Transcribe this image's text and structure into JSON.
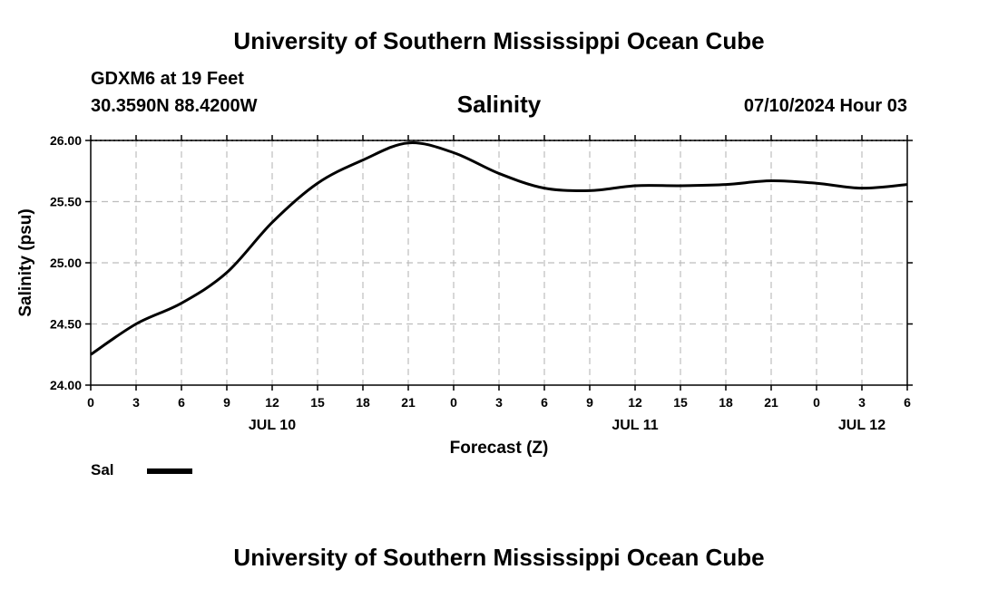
{
  "page": {
    "top_title": "University of Southern Mississippi Ocean Cube",
    "bottom_title": "University of Southern Mississippi Ocean Cube",
    "station": "GDXM6 at 19 Feet",
    "location": "30.3590N  88.4200W",
    "run_time": "07/10/2024 Hour 03"
  },
  "chart_data": {
    "type": "line",
    "title": "Salinity",
    "xlabel": "Forecast (Z)",
    "ylabel": "Salinity (psu)",
    "ylim": [
      24.0,
      26.0
    ],
    "y_ticks": [
      "24.00",
      "24.50",
      "25.00",
      "25.50",
      "26.00"
    ],
    "y_tick_values": [
      24.0,
      24.5,
      25.0,
      25.5,
      26.0
    ],
    "xlim": [
      0,
      54
    ],
    "x_tick_hours": [
      0,
      3,
      6,
      9,
      12,
      15,
      18,
      21,
      24,
      27,
      30,
      33,
      36,
      39,
      42,
      45,
      48,
      51,
      54
    ],
    "x_tick_labels": [
      "0",
      "3",
      "6",
      "9",
      "12",
      "15",
      "18",
      "21",
      "0",
      "3",
      "6",
      "9",
      "12",
      "15",
      "18",
      "21",
      "0",
      "3",
      "6"
    ],
    "date_labels": [
      {
        "hour": 12,
        "label": "JUL 10"
      },
      {
        "hour": 36,
        "label": "JUL 11"
      },
      {
        "hour": 51,
        "label": "JUL 12"
      }
    ],
    "grid": true,
    "legend": [
      {
        "name": "Sal",
        "color": "#000000"
      }
    ],
    "series": [
      {
        "name": "Sal",
        "x": [
          0,
          3,
          6,
          9,
          12,
          15,
          18,
          21,
          24,
          27,
          30,
          33,
          36,
          39,
          42,
          45,
          48,
          51,
          54
        ],
        "values": [
          24.25,
          24.5,
          24.67,
          24.92,
          25.33,
          25.65,
          25.84,
          25.98,
          25.9,
          25.73,
          25.61,
          25.59,
          25.63,
          25.63,
          25.64,
          25.67,
          25.65,
          25.61,
          25.64
        ]
      }
    ]
  }
}
